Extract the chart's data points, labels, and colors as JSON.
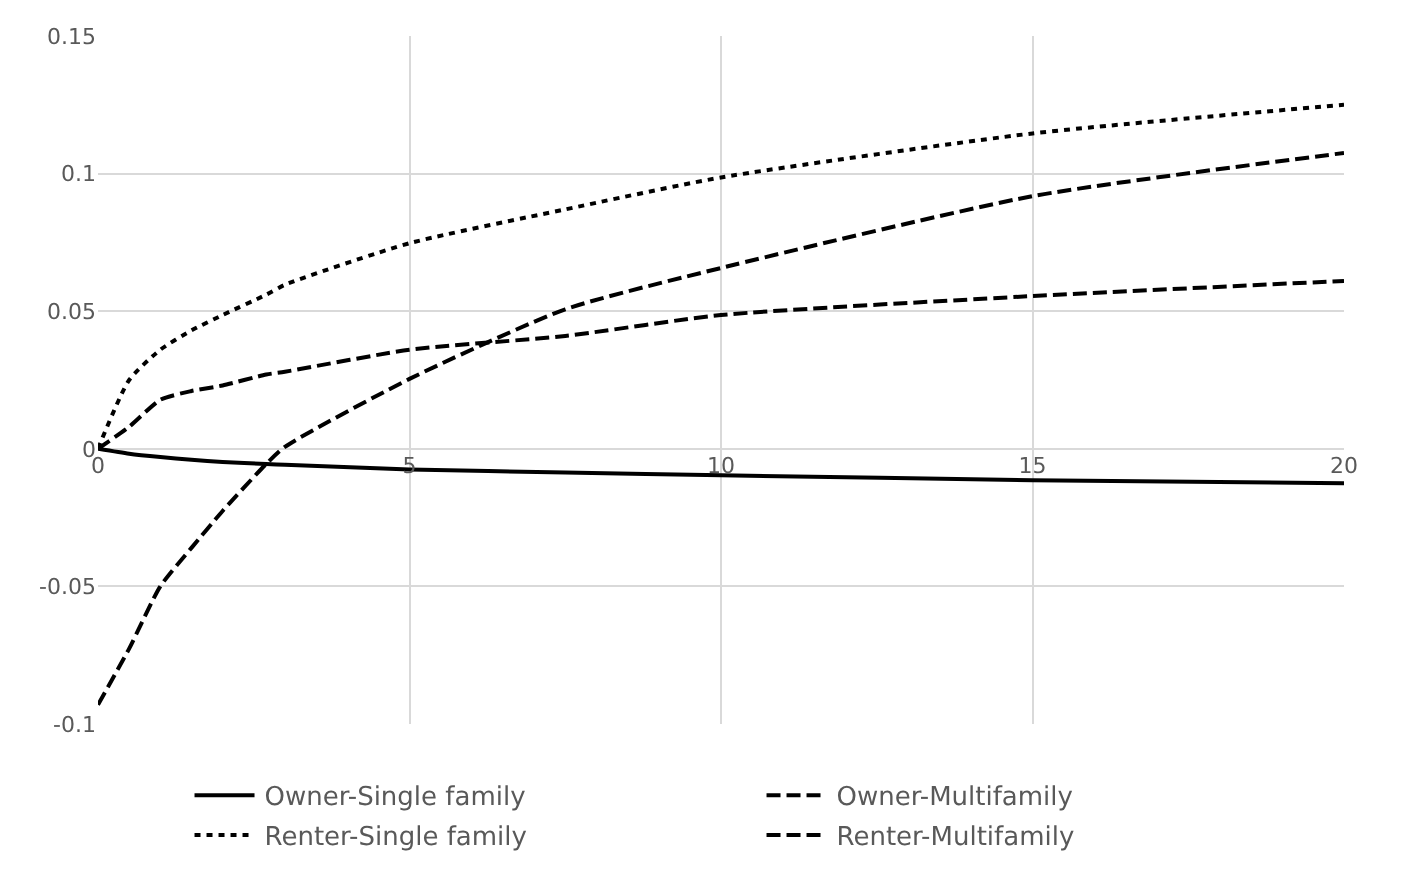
{
  "chart_data": {
    "type": "line",
    "x": [
      0,
      0.5,
      1,
      1.5,
      2,
      2.7,
      3,
      5,
      7.5,
      10,
      15,
      20
    ],
    "series": [
      {
        "name": "Owner-Single family",
        "color": "#000000",
        "line_style": "solid",
        "values": [
          0,
          -0.0018,
          -0.003,
          -0.004,
          -0.0048,
          -0.0055,
          -0.0058,
          -0.0075,
          -0.0086,
          -0.0096,
          -0.0114,
          -0.0125
        ]
      },
      {
        "name": "Owner-Multifamily",
        "color": "#000000",
        "line_style": "dashed",
        "values": [
          -0.093,
          -0.0726,
          -0.05,
          -0.036,
          -0.0226,
          -0.0055,
          0.0007,
          0.0254,
          0.0507,
          0.0657,
          0.0918,
          0.1075
        ]
      },
      {
        "name": "Renter-Single family",
        "color": "#000000",
        "line_style": "dotted",
        "values": [
          0,
          0.025,
          0.036,
          0.043,
          0.0486,
          0.056,
          0.0596,
          0.0747,
          0.087,
          0.0986,
          0.1146,
          0.125
        ]
      },
      {
        "name": "Renter-Multifamily",
        "color": "#000000",
        "line_style": "dashed",
        "values": [
          0,
          0.008,
          0.0178,
          0.021,
          0.023,
          0.027,
          0.028,
          0.036,
          0.041,
          0.0486,
          0.0555,
          0.061
        ]
      }
    ],
    "xlim": [
      0,
      20
    ],
    "xticks": [
      0,
      5,
      10,
      15,
      20
    ],
    "ylim": [
      -0.1,
      0.15
    ],
    "yticks": [
      -0.1,
      -0.05,
      0,
      0.05,
      0.1,
      0.15
    ],
    "grid": true,
    "legend": "bottom",
    "marker": "none"
  }
}
